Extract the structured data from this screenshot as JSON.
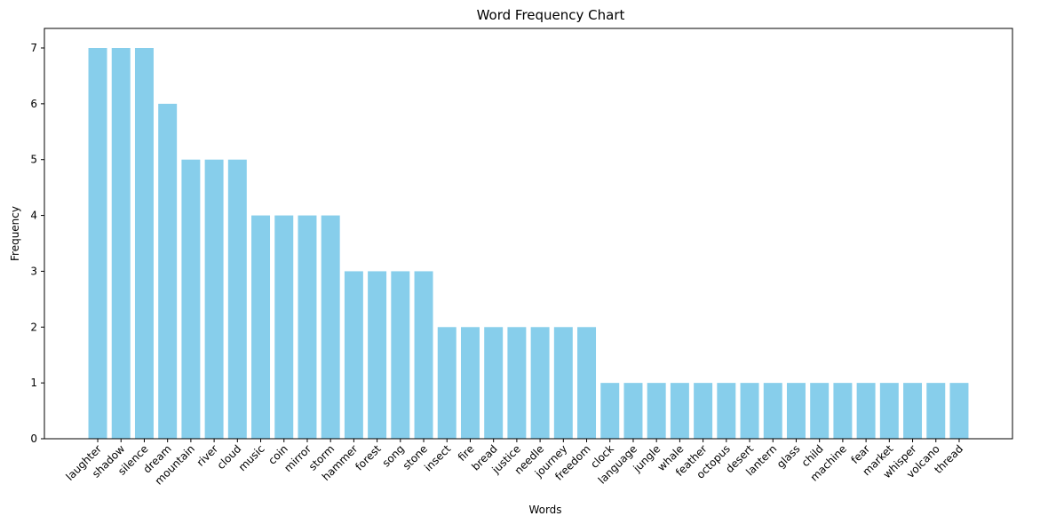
{
  "chart_data": {
    "type": "bar",
    "title": "Word Frequency Chart",
    "xlabel": "Words",
    "ylabel": "Frequency",
    "categories": [
      "laughter",
      "shadow",
      "silence",
      "dream",
      "mountain",
      "river",
      "cloud",
      "music",
      "coin",
      "mirror",
      "storm",
      "hammer",
      "forest",
      "song",
      "stone",
      "insect",
      "fire",
      "bread",
      "justice",
      "needle",
      "journey",
      "freedom",
      "clock",
      "language",
      "jungle",
      "whale",
      "feather",
      "octopus",
      "desert",
      "lantern",
      "glass",
      "child",
      "machine",
      "fear",
      "market",
      "whisper",
      "volcano",
      "thread"
    ],
    "values": [
      7,
      7,
      7,
      6,
      5,
      5,
      5,
      4,
      4,
      4,
      4,
      3,
      3,
      3,
      3,
      2,
      2,
      2,
      2,
      2,
      2,
      2,
      1,
      1,
      1,
      1,
      1,
      1,
      1,
      1,
      1,
      1,
      1,
      1,
      1,
      1,
      1,
      1
    ],
    "ylim": [
      0,
      7.35
    ],
    "yticks": [
      0,
      1,
      2,
      3,
      4,
      5,
      6,
      7
    ],
    "bar_color": "#87ceeb",
    "grid": false
  }
}
